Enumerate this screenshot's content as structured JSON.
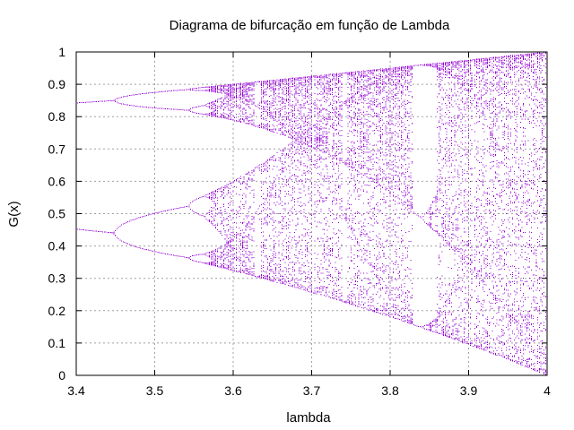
{
  "chart_data": {
    "type": "scatter",
    "title": "Diagrama de bifurcação em função de Lambda",
    "xlabel": "lambda",
    "ylabel": "G(x)",
    "xlim": [
      3.4,
      4.0
    ],
    "ylim": [
      0,
      1
    ],
    "xticks": [
      "3.4",
      "3.5",
      "3.6",
      "3.7",
      "3.8",
      "3.9",
      "4"
    ],
    "yticks": [
      "0",
      "0.1",
      "0.2",
      "0.3",
      "0.4",
      "0.5",
      "0.6",
      "0.7",
      "0.8",
      "0.9",
      "1"
    ],
    "grid": true,
    "legend": "none",
    "series": [
      {
        "color": "#9400d3",
        "description_of_data": "logistic-map attractor G(x) = lambda*x*(1-x) sampled over lambda",
        "lambda_start": 3.4,
        "lambda_end": 4.0
      }
    ]
  }
}
